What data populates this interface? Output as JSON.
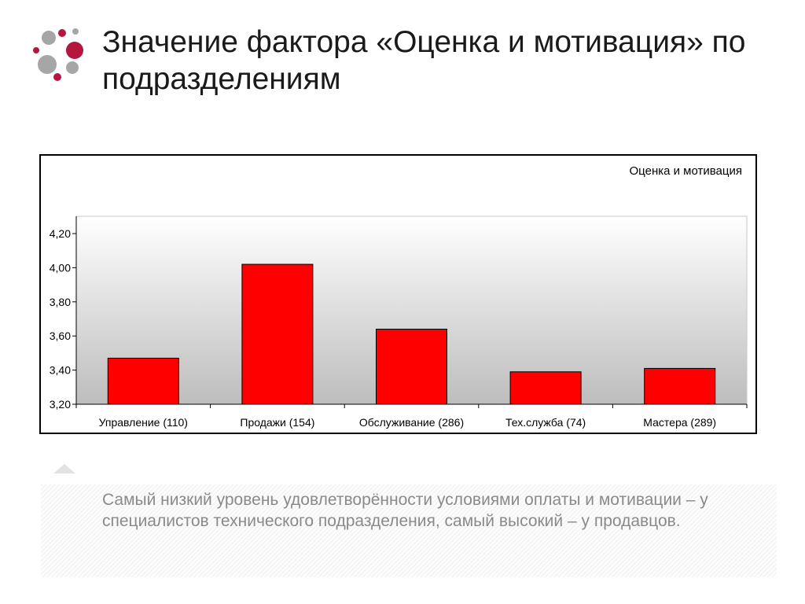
{
  "slide": {
    "title": "Значение фактора «Оценка и мотивация» по подразделениям",
    "note": "Самый низкий уровень удовлетворённости условиями оплаты и мотивации – у специалистов технического подразделения, самый высокий – у продавцов."
  },
  "colors": {
    "bar": "#ff0000",
    "logo_accent": "#b5163f",
    "logo_gray": "#a6a6a6"
  },
  "chart_data": {
    "type": "bar",
    "title": "",
    "legend": "Оценка и мотивация",
    "legend_position": "top-right",
    "categories": [
      "Управление (110)",
      "Продажи (154)",
      "Обслуживание (286)",
      "Тех.служба (74)",
      "Мастера (289)"
    ],
    "series": [
      {
        "name": "Оценка и мотивация",
        "values": [
          3.47,
          4.02,
          3.64,
          3.39,
          3.41
        ]
      }
    ],
    "ylim": [
      3.2,
      4.3
    ],
    "yticks": [
      "3,20",
      "3,40",
      "3,60",
      "3,80",
      "4,00",
      "4,20"
    ],
    "grid": false,
    "xlabel": "",
    "ylabel": ""
  }
}
